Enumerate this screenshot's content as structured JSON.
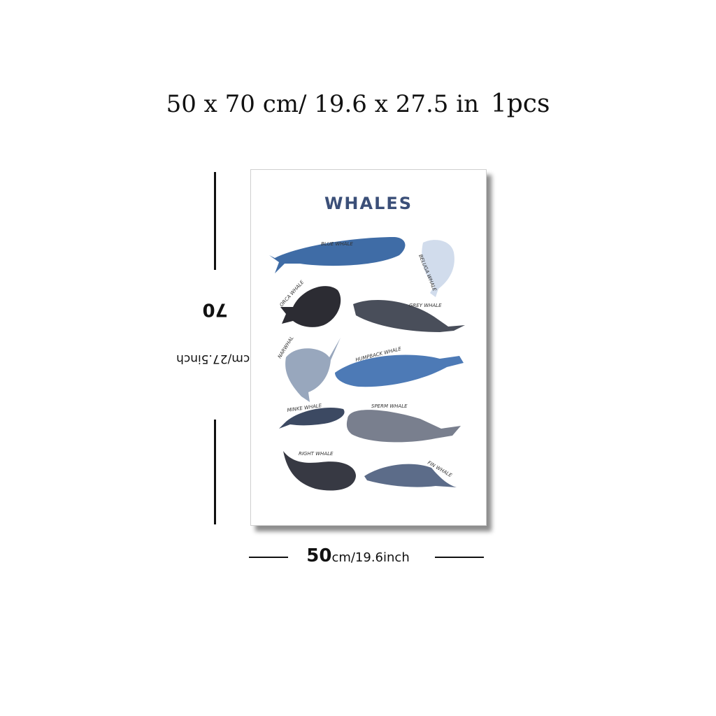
{
  "headline": {
    "dimensions": "50 x 70 cm/ 19.6 x 27.5 in",
    "quantity": "1pcs"
  },
  "height_dimension": {
    "value": "70",
    "unit_text": "cm/27.5inch"
  },
  "width_dimension": {
    "value": "50",
    "unit_text": "cm/19.6inch"
  },
  "poster": {
    "title": "WHALES",
    "whales": [
      {
        "label": "BLUE WHALE",
        "color": "#2f5f9e"
      },
      {
        "label": "BELUGA WHALE",
        "color": "#cdd9ea"
      },
      {
        "label": "ORCA WHALE",
        "color": "#1a1a22"
      },
      {
        "label": "GREY WHALE",
        "color": "#3a3f4c"
      },
      {
        "label": "NARWHAL",
        "color": "#8f9fb7"
      },
      {
        "label": "HUMPBACK WHALE",
        "color": "#3e6fb0"
      },
      {
        "label": "MINKE WHALE",
        "color": "#2b3a55"
      },
      {
        "label": "SPERM WHALE",
        "color": "#6e7484"
      },
      {
        "label": "RIGHT WHALE",
        "color": "#262833"
      },
      {
        "label": "FIN WHALE",
        "color": "#4e5f7f"
      }
    ]
  }
}
